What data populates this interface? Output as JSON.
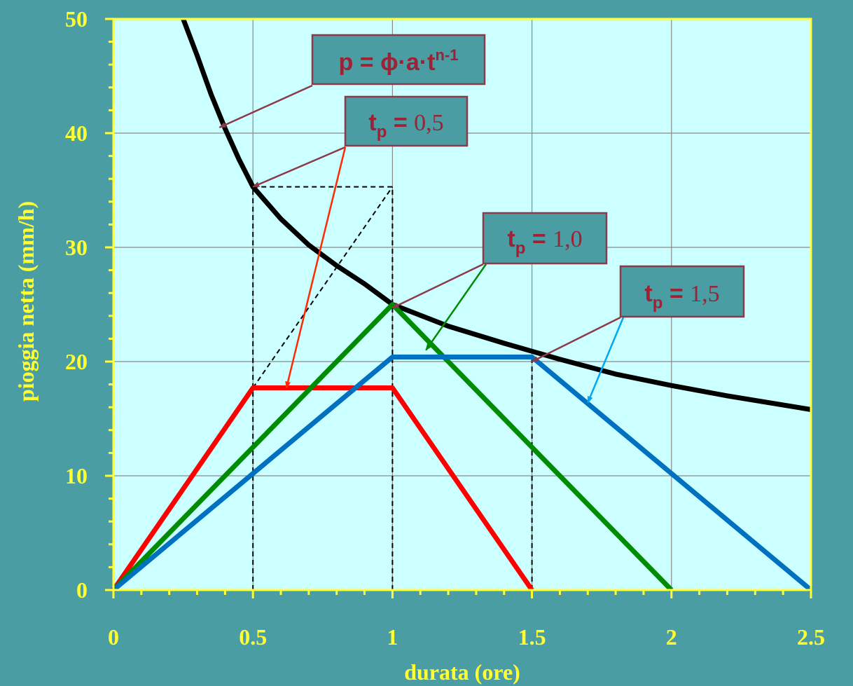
{
  "chart_data": {
    "type": "line",
    "xlabel": "durata (ore)",
    "ylabel": "pioggia netta (mm/h)",
    "xlim": [
      0,
      2.5
    ],
    "ylim": [
      0,
      50
    ],
    "x_ticks": [
      "0",
      "0.5",
      "1",
      "1.5",
      "2",
      "2.5"
    ],
    "y_ticks": [
      "0",
      "10",
      "20",
      "30",
      "40",
      "50"
    ],
    "grid": true,
    "series": [
      {
        "color": "#000000",
        "x": [
          0.25,
          0.3,
          0.35,
          0.4,
          0.45,
          0.5,
          0.6,
          0.7,
          0.8,
          0.9,
          1.0,
          1.2,
          1.4,
          1.6,
          1.8,
          2.0,
          2.2,
          2.5
        ],
        "y": [
          50.0,
          46.8,
          43.4,
          40.4,
          37.7,
          35.3,
          32.5,
          30.2,
          28.4,
          26.8,
          25.0,
          23.1,
          21.6,
          20.2,
          18.9,
          17.9,
          17.0,
          15.8
        ]
      },
      {
        "color": "#ff0000",
        "x": [
          0,
          0.5,
          1.0,
          1.5
        ],
        "y": [
          0,
          17.7,
          17.7,
          0
        ]
      },
      {
        "color": "#008c00",
        "x": [
          0,
          1.0,
          2.0
        ],
        "y": [
          0,
          25.0,
          0
        ]
      },
      {
        "color": "#0070c0",
        "x": [
          0,
          1.0,
          1.5,
          2.5
        ],
        "y": [
          0,
          20.4,
          20.4,
          0
        ]
      }
    ],
    "guides": [
      {
        "x": [
          0.5,
          0.5
        ],
        "y": [
          0,
          35.3
        ]
      },
      {
        "x": [
          0.5,
          1.0
        ],
        "y": [
          35.3,
          35.3
        ]
      },
      {
        "x": [
          1.0,
          1.0
        ],
        "y": [
          0,
          35.3
        ]
      },
      {
        "x": [
          0.5,
          1.0
        ],
        "y": [
          17.7,
          35.3
        ]
      },
      {
        "x": [
          1.5,
          1.5
        ],
        "y": [
          0,
          20.4
        ]
      }
    ],
    "annotations": [
      {
        "id": "formula",
        "text": "p = ϕ·a·t",
        "sup": "n-1",
        "point_to": [
          0.38,
          40.5
        ]
      },
      {
        "id": "tp05",
        "label": "t",
        "sub": "p",
        "eq": " = ",
        "value": "0,5",
        "point_to": [
          0.5,
          35.3
        ],
        "arrow2_to": [
          0.62,
          17.7
        ],
        "arrow2_color": "#ff2a00"
      },
      {
        "id": "tp10",
        "label": "t",
        "sub": "p",
        "eq": " = ",
        "value": "1,0",
        "point_to": [
          1.0,
          24.7
        ],
        "arrow2_to": [
          1.12,
          21.0
        ],
        "arrow2_color": "#008c00"
      },
      {
        "id": "tp15",
        "label": "t",
        "sub": "p",
        "eq": " = ",
        "value": "1,5",
        "point_to": [
          1.5,
          20.0
        ],
        "arrow2_to": [
          1.7,
          16.4
        ],
        "arrow2_color": "#00a8f0"
      }
    ]
  }
}
